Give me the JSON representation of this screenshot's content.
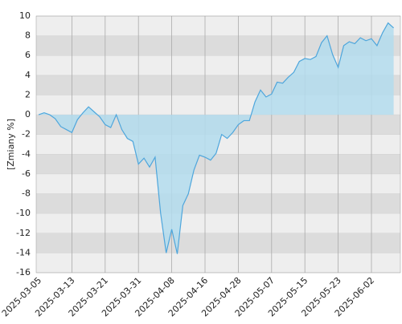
{
  "chart_data": {
    "type": "area",
    "y_label": "[Zmiany %]",
    "categories": [
      "2025-03-05",
      null,
      null,
      null,
      null,
      null,
      "2025-03-13",
      null,
      null,
      null,
      null,
      null,
      "2025-03-21",
      null,
      null,
      null,
      null,
      null,
      "2025-03-31",
      null,
      null,
      null,
      null,
      null,
      "2025-04-08",
      null,
      null,
      null,
      null,
      null,
      "2025-04-16",
      null,
      null,
      null,
      null,
      null,
      "2025-04-28",
      null,
      null,
      null,
      null,
      null,
      "2025-05-07",
      null,
      null,
      null,
      null,
      null,
      "2025-05-15",
      null,
      null,
      null,
      null,
      null,
      "2025-05-23",
      null,
      null,
      null,
      null,
      null,
      "2025-06-02",
      null,
      null,
      null,
      null
    ],
    "values": [
      0,
      0.2,
      0,
      -0.4,
      -1.2,
      -1.5,
      -1.8,
      -0.5,
      0.2,
      0.8,
      0.3,
      -0.2,
      -1.0,
      -1.3,
      0,
      -1.5,
      -2.4,
      -2.7,
      -5.0,
      -4.4,
      -5.3,
      -4.3,
      -10,
      -14,
      -11.6,
      -14.1,
      -9.2,
      -8,
      -5.6,
      -4.1,
      -4.3,
      -4.6,
      -3.9,
      -2,
      -2.4,
      -1.8,
      -1.0,
      -0.6,
      -0.6,
      1.3,
      2.5,
      1.8,
      2.1,
      3.3,
      3.2,
      3.8,
      4.3,
      5.4,
      5.7,
      5.6,
      5.9,
      7.3,
      8.0,
      6.1,
      4.8,
      7.0,
      7.4,
      7.2,
      7.8,
      7.5,
      7.7,
      7.0,
      8.3,
      9.3,
      8.8
    ],
    "color": "#4ea6dc",
    "fill": "#b3dced",
    "ylim": [
      -16,
      10
    ],
    "yticks": [
      -16,
      -14,
      -12,
      -10,
      -8,
      -6,
      -4,
      -2,
      0,
      2,
      4,
      6,
      8,
      10
    ],
    "grid": true
  }
}
